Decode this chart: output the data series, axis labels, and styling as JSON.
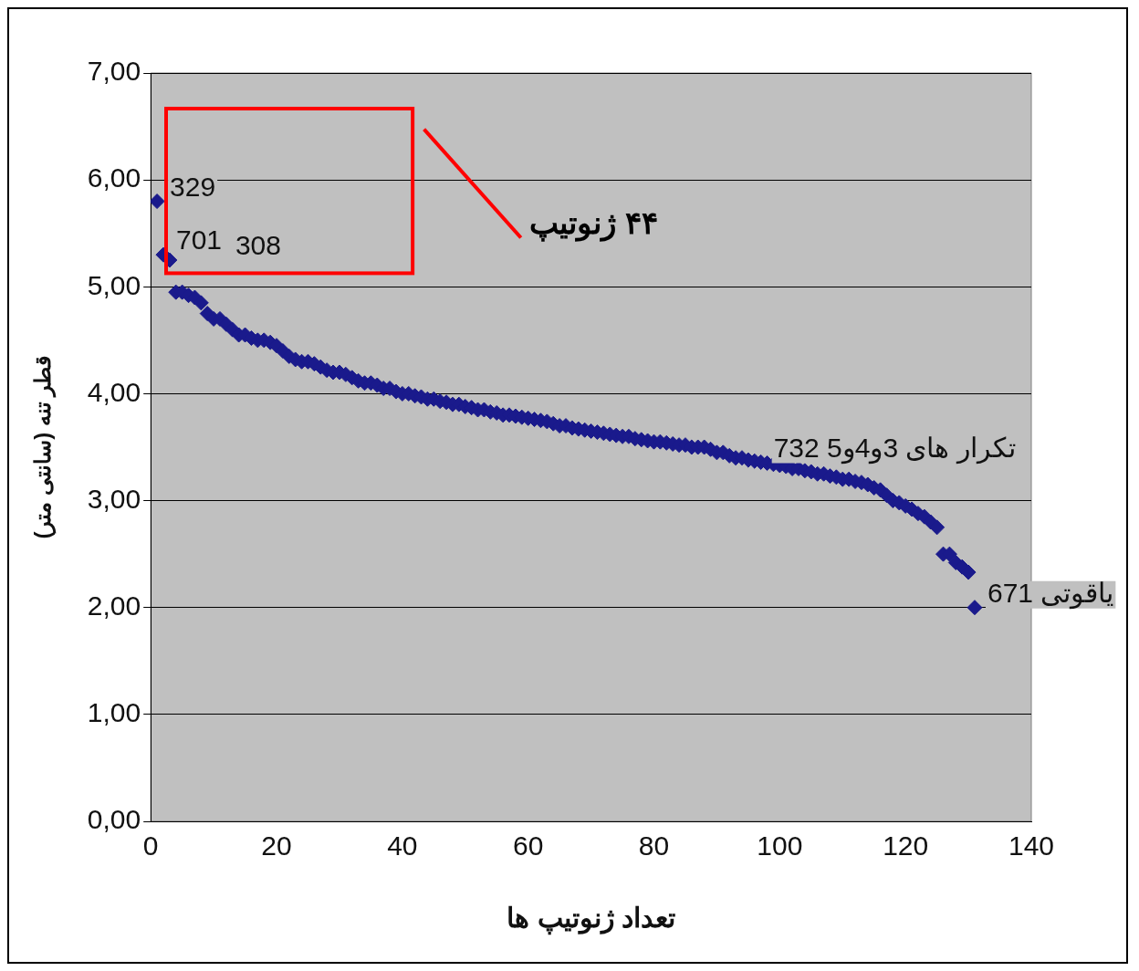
{
  "chart_data": {
    "type": "scatter",
    "xlabel": "تعداد ژنوتیپ ها",
    "ylabel": "قطر تنه (سانتی متر)",
    "x": [
      1,
      2,
      3,
      4,
      5,
      6,
      7,
      8,
      9,
      10,
      11,
      12,
      13,
      14,
      15,
      16,
      17,
      18,
      19,
      20,
      21,
      22,
      23,
      24,
      25,
      26,
      27,
      28,
      29,
      30,
      31,
      32,
      33,
      34,
      35,
      36,
      37,
      38,
      39,
      40,
      41,
      42,
      43,
      44,
      45,
      46,
      47,
      48,
      49,
      50,
      51,
      52,
      53,
      54,
      55,
      56,
      57,
      58,
      59,
      60,
      61,
      62,
      63,
      64,
      65,
      66,
      67,
      68,
      69,
      70,
      71,
      72,
      73,
      74,
      75,
      76,
      77,
      78,
      79,
      80,
      81,
      82,
      83,
      84,
      85,
      86,
      87,
      88,
      89,
      90,
      91,
      92,
      93,
      94,
      95,
      96,
      97,
      98,
      99,
      100,
      101,
      102,
      103,
      104,
      105,
      106,
      107,
      108,
      109,
      110,
      111,
      112,
      113,
      114,
      115,
      116,
      117,
      118,
      119,
      120,
      121,
      122,
      123,
      124,
      125,
      126,
      127,
      128,
      129,
      130,
      131
    ],
    "series": [
      {
        "color": "#1a1a8c",
        "values": [
          5.8,
          5.3,
          5.25,
          4.95,
          4.95,
          4.92,
          4.9,
          4.85,
          4.75,
          4.7,
          4.7,
          4.65,
          4.6,
          4.55,
          4.55,
          4.52,
          4.5,
          4.5,
          4.48,
          4.45,
          4.4,
          4.35,
          4.32,
          4.3,
          4.3,
          4.28,
          4.25,
          4.22,
          4.2,
          4.2,
          4.18,
          4.15,
          4.12,
          4.1,
          4.1,
          4.08,
          4.05,
          4.05,
          4.02,
          4.0,
          4.0,
          3.98,
          3.97,
          3.95,
          3.95,
          3.93,
          3.92,
          3.9,
          3.9,
          3.88,
          3.87,
          3.85,
          3.85,
          3.83,
          3.82,
          3.8,
          3.8,
          3.79,
          3.78,
          3.77,
          3.76,
          3.75,
          3.74,
          3.72,
          3.7,
          3.7,
          3.68,
          3.67,
          3.66,
          3.65,
          3.64,
          3.63,
          3.62,
          3.61,
          3.6,
          3.6,
          3.58,
          3.57,
          3.56,
          3.55,
          3.55,
          3.54,
          3.53,
          3.52,
          3.52,
          3.5,
          3.5,
          3.5,
          3.48,
          3.45,
          3.45,
          3.42,
          3.4,
          3.4,
          3.38,
          3.37,
          3.36,
          3.35,
          3.34,
          3.33,
          3.32,
          3.3,
          3.3,
          3.28,
          3.27,
          3.25,
          3.25,
          3.23,
          3.22,
          3.2,
          3.2,
          3.18,
          3.17,
          3.15,
          3.12,
          3.1,
          3.05,
          3.0,
          2.98,
          2.95,
          2.92,
          2.88,
          2.85,
          2.8,
          2.75,
          2.5,
          2.5,
          2.42,
          2.38,
          2.33,
          2.0
        ]
      }
    ],
    "xlim": [
      0,
      140
    ],
    "xticks": [
      0,
      20,
      40,
      60,
      80,
      100,
      120,
      140
    ],
    "ylim": [
      0,
      7
    ],
    "yticks": [
      {
        "value": 0,
        "label": "0,00"
      },
      {
        "value": 1,
        "label": "1,00"
      },
      {
        "value": 2,
        "label": "2,00"
      },
      {
        "value": 3,
        "label": "3,00"
      },
      {
        "value": 4,
        "label": "4,00"
      },
      {
        "value": 5,
        "label": "5,00"
      },
      {
        "value": 6,
        "label": "6,00"
      },
      {
        "value": 7,
        "label": "7,00"
      }
    ],
    "grid": "y",
    "marker": "diamond",
    "legend": false,
    "annotations": [
      {
        "text": "329",
        "x": 1,
        "y": 5.8
      },
      {
        "text": "701",
        "x": 2,
        "y": 5.3
      },
      {
        "text": "308",
        "x": 3,
        "y": 5.25
      },
      {
        "text": "732 تکرار های 3و4و5",
        "x": 97,
        "y": 3.36
      },
      {
        "text": "671 یاقوتی",
        "x": 131,
        "y": 2.0
      },
      "۴۴ ژنوتیپ"
    ]
  }
}
